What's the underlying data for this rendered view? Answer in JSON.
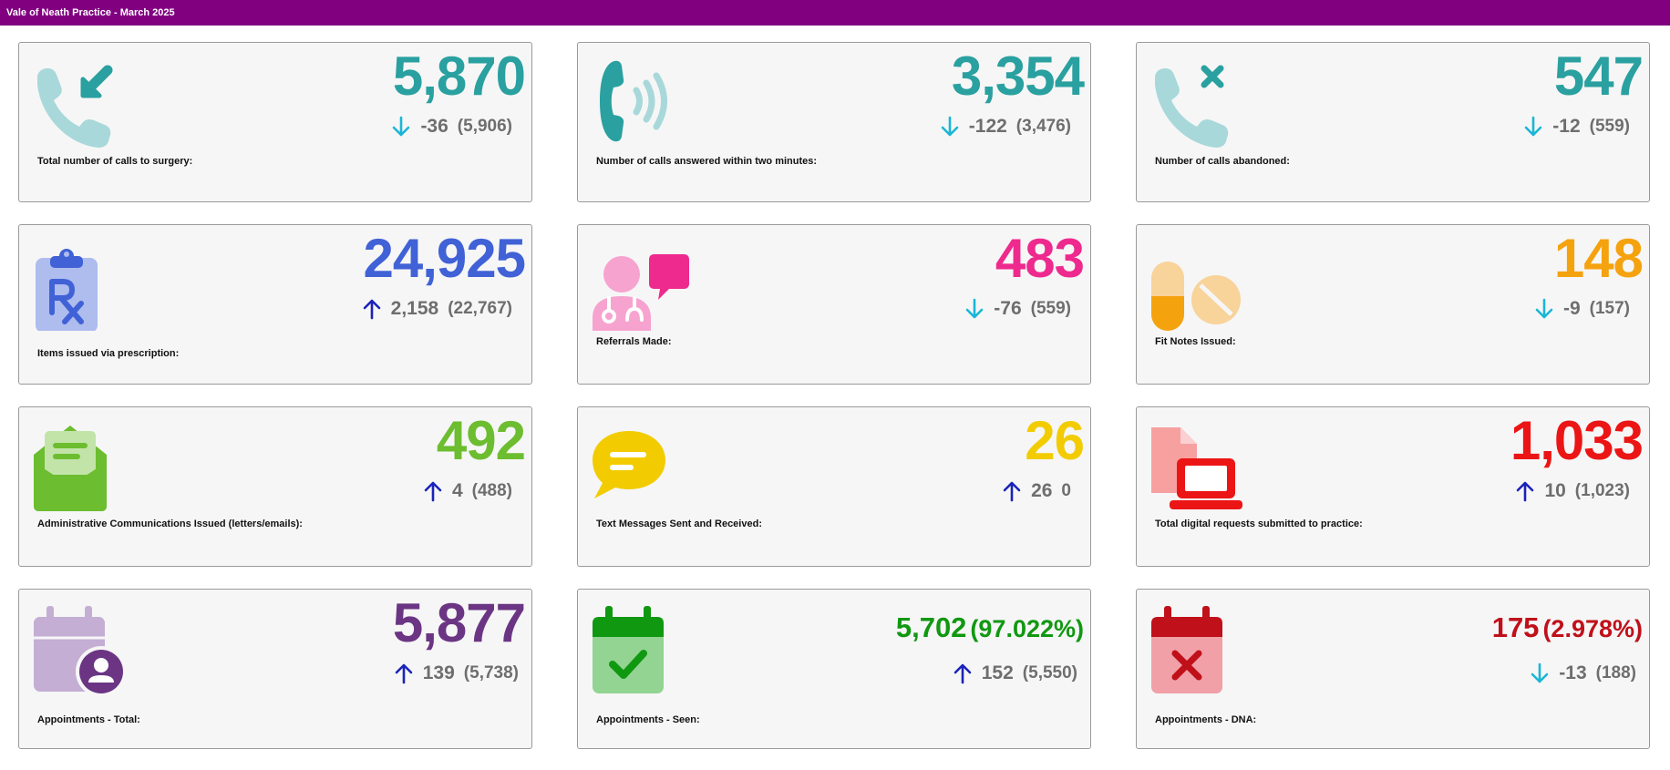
{
  "title": "Vale of Neath Practice - March 2025",
  "colors": {
    "header": "#800080",
    "arrow_down": "#1ab6d6",
    "arrow_up": "#1c23b8",
    "change_text": "#6e6e6e"
  },
  "cards": [
    {
      "icon": "incoming-call-icon",
      "value": "5,870",
      "direction": "down",
      "delta": "-36",
      "previous": "(5,906)",
      "label": "Total number of calls to surgery:",
      "color": "#2aa0a0"
    },
    {
      "icon": "answered-call-icon",
      "value": "3,354",
      "direction": "down",
      "delta": "-122",
      "previous": "(3,476)",
      "label": "Number of calls answered within two minutes:",
      "color": "#2aa0a0"
    },
    {
      "icon": "abandoned-call-icon",
      "value": "547",
      "direction": "down",
      "delta": "-12",
      "previous": "(559)",
      "label": "Number of calls abandoned:",
      "color": "#2aa0a0"
    },
    {
      "icon": "prescription-clipboard-icon",
      "value": "24,925",
      "direction": "up",
      "delta": "2,158",
      "previous": "(22,767)",
      "label": "Items issued via prescription:",
      "color": "#4062d6"
    },
    {
      "icon": "doctor-referral-icon",
      "value": "483",
      "direction": "down",
      "delta": "-76",
      "previous": "(559)",
      "label": "Referrals Made:",
      "color": "#ee2a8e"
    },
    {
      "icon": "pills-icon",
      "value": "148",
      "direction": "down",
      "delta": "-9",
      "previous": "(157)",
      "label": "Fit Notes Issued:",
      "color": "#f5a20f"
    },
    {
      "icon": "envelope-letter-icon",
      "value": "492",
      "direction": "up",
      "delta": "4",
      "previous": "(488)",
      "label": "Administrative Communications Issued (letters/emails):",
      "color": "#6cbd2f"
    },
    {
      "icon": "chat-bubble-icon",
      "value": "26",
      "direction": "up",
      "delta": "26",
      "previous": "0",
      "label": "Text Messages Sent and Received:",
      "color": "#f2cc00"
    },
    {
      "icon": "laptop-document-icon",
      "value": "1,033",
      "direction": "up",
      "delta": "10",
      "previous": "(1,023)",
      "label": "Total digital requests submitted to practice:",
      "color": "#ec1515"
    },
    {
      "icon": "calendar-person-icon",
      "value": "5,877",
      "direction": "up",
      "delta": "139",
      "previous": "(5,738)",
      "label": "Appointments - Total:",
      "color": "#6b3584"
    },
    {
      "icon": "calendar-check-icon",
      "value": "5,702",
      "percentage": "(97.022%)",
      "direction": "up",
      "delta": "152",
      "previous": "(5,550)",
      "label": "Appointments - Seen:",
      "color": "#119811"
    },
    {
      "icon": "calendar-cross-icon",
      "value": "175",
      "percentage": "(2.978%)",
      "direction": "down",
      "delta": "-13",
      "previous": "(188)",
      "label": "Appointments - DNA:",
      "color": "#c0101a"
    }
  ]
}
